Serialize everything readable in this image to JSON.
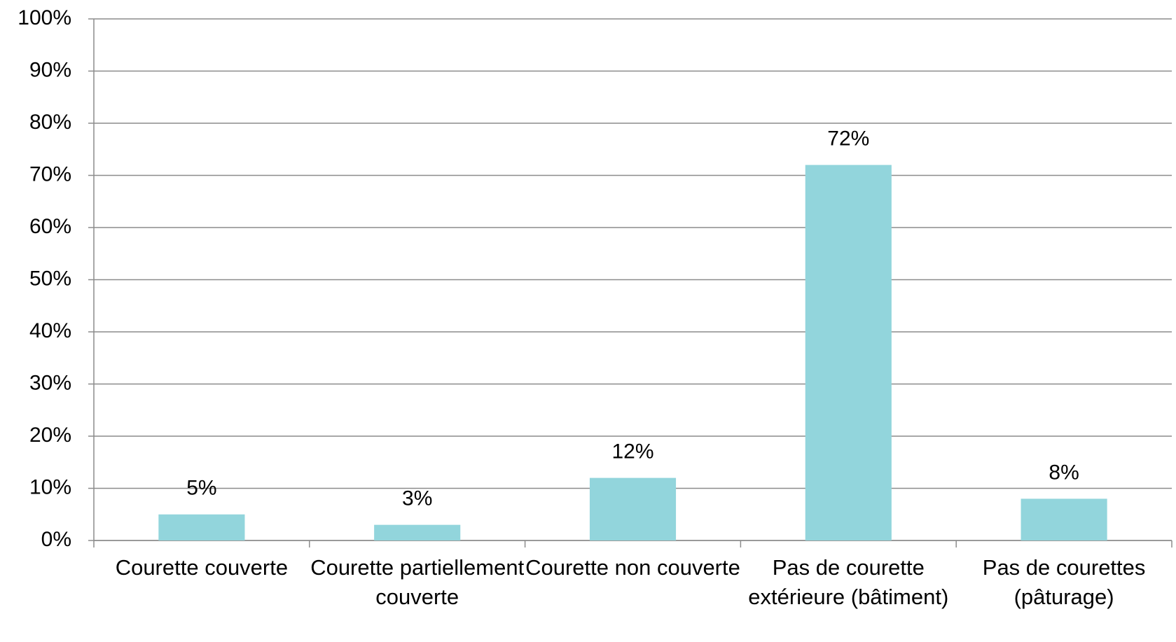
{
  "chart_data": {
    "type": "bar",
    "categories": [
      "Courette couverte",
      "Courette partiellement couverte",
      "Courette non couverte",
      "Pas de courette extérieure (bâtiment)",
      "Pas de courettes (pâturage)"
    ],
    "values": [
      5,
      3,
      12,
      72,
      8
    ],
    "value_labels": [
      "5%",
      "3%",
      "12%",
      "72%",
      "8%"
    ],
    "color": "#92d5dc",
    "ylim": [
      0,
      100
    ],
    "yticks": [
      {
        "value": 0,
        "label": "0%"
      },
      {
        "value": 10,
        "label": "10%"
      },
      {
        "value": 20,
        "label": "20%"
      },
      {
        "value": 30,
        "label": "30%"
      },
      {
        "value": 40,
        "label": "40%"
      },
      {
        "value": 50,
        "label": "50%"
      },
      {
        "value": 60,
        "label": "60%"
      },
      {
        "value": 70,
        "label": "70%"
      },
      {
        "value": 80,
        "label": "80%"
      },
      {
        "value": 90,
        "label": "90%"
      },
      {
        "value": 100,
        "label": "100%"
      }
    ],
    "grid": true
  }
}
